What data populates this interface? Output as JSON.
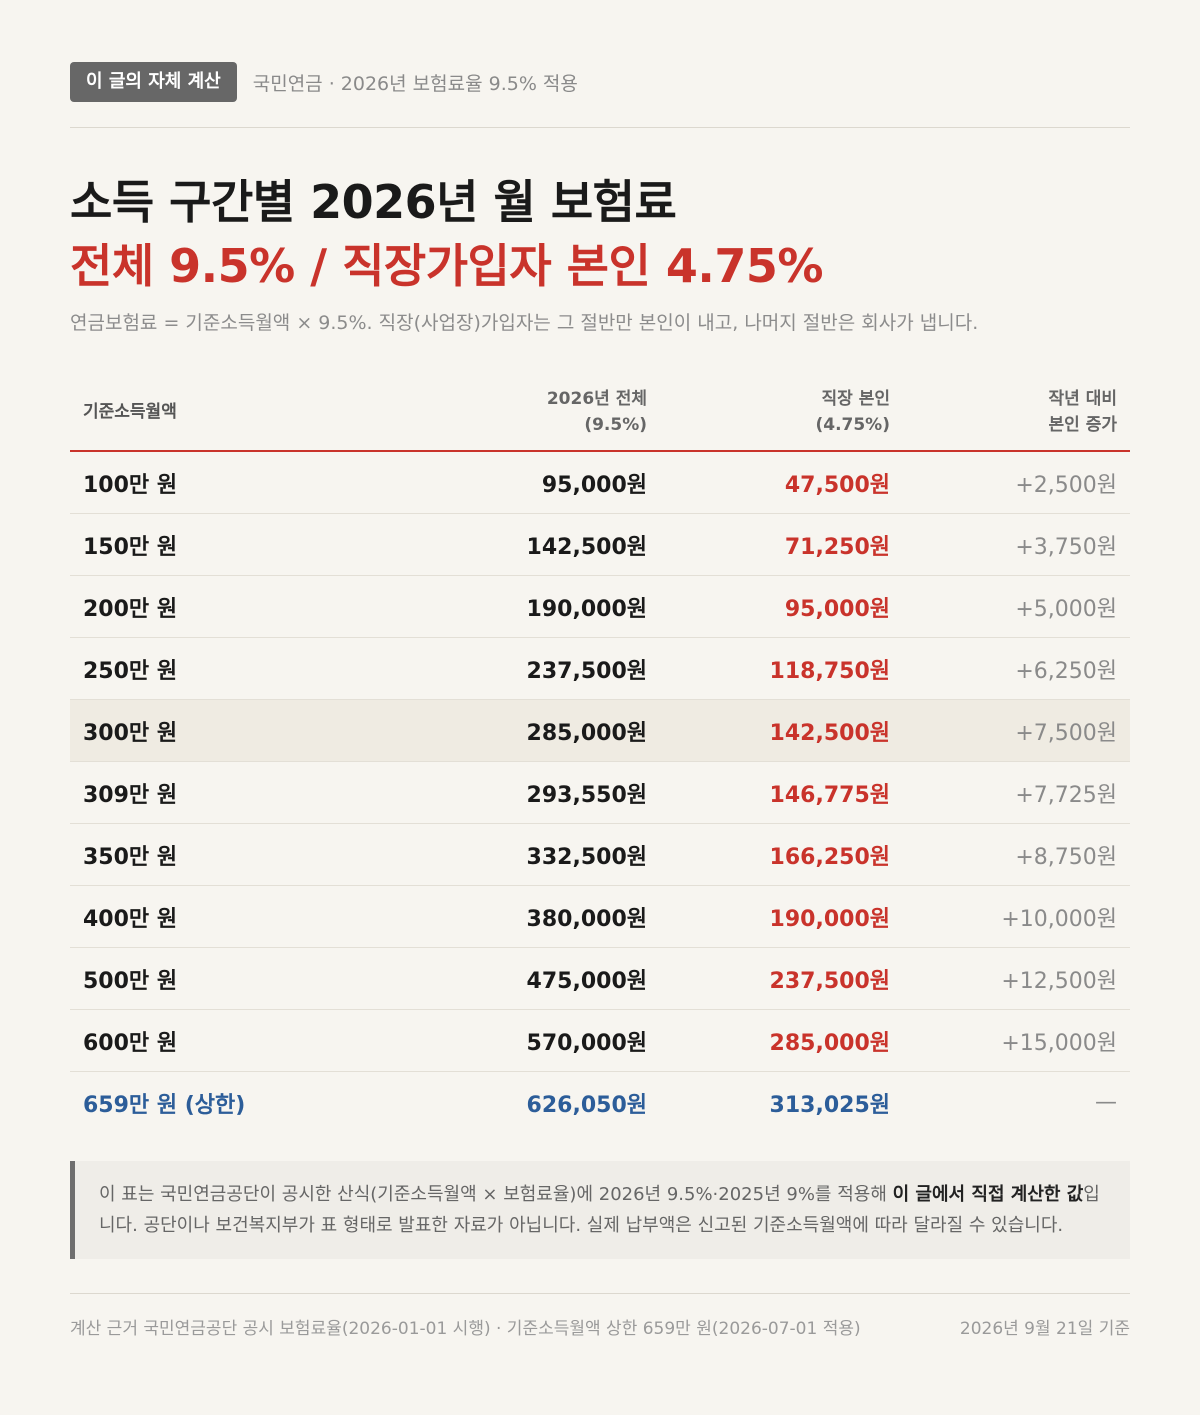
{
  "header": {
    "badge": "이 글의 자체 계산",
    "note": "국민연금 · 2026년 보험료율 9.5% 적용"
  },
  "title": "소득 구간별 2026년 월 보험료",
  "subtitle": "전체 9.5% / 직장가입자 본인 4.75%",
  "description": "연금보험료 = 기준소득월액 × 9.5%. 직장(사업장)가입자는 그 절반만 본인이 내고, 나머지 절반은 회사가 냅니다.",
  "table": {
    "headers": {
      "income": "기준소득월액",
      "total_line1": "2026년 전체",
      "total_line2": "(9.5%)",
      "employee_line1": "직장 본인",
      "employee_line2": "(4.75%)",
      "increase_line1": "작년 대비",
      "increase_line2": "본인 증가"
    },
    "rows": [
      {
        "income": "100만 원",
        "total": "95,000원",
        "employee": "47,500원",
        "increase": "+2,500원"
      },
      {
        "income": "150만 원",
        "total": "142,500원",
        "employee": "71,250원",
        "increase": "+3,750원"
      },
      {
        "income": "200만 원",
        "total": "190,000원",
        "employee": "95,000원",
        "increase": "+5,000원"
      },
      {
        "income": "250만 원",
        "total": "237,500원",
        "employee": "118,750원",
        "increase": "+6,250원"
      },
      {
        "income": "300만 원",
        "total": "285,000원",
        "employee": "142,500원",
        "increase": "+7,500원"
      },
      {
        "income": "309만 원",
        "total": "293,550원",
        "employee": "146,775원",
        "increase": "+7,725원"
      },
      {
        "income": "350만 원",
        "total": "332,500원",
        "employee": "166,250원",
        "increase": "+8,750원"
      },
      {
        "income": "400만 원",
        "total": "380,000원",
        "employee": "190,000원",
        "increase": "+10,000원"
      },
      {
        "income": "500만 원",
        "total": "475,000원",
        "employee": "237,500원",
        "increase": "+12,500원"
      },
      {
        "income": "600만 원",
        "total": "570,000원",
        "employee": "285,000원",
        "increase": "+15,000원"
      },
      {
        "income": "659만 원 (상한)",
        "total": "626,050원",
        "employee": "313,025원",
        "increase": "—"
      }
    ]
  },
  "note": {
    "text_before": "이 표는 국민연금공단이 공시한 산식(기준소득월액 × 보험료율)에 2026년 9.5%·2025년 9%를 적용해 ",
    "text_bold": "이 글에서 직접 계산한 값",
    "text_after": "입니다. 공단이나 보건복지부가 표 형태로 발표한 자료가 아닙니다. 실제 납부액은 신고된 기준소득월액에 따라 달라질 수 있습니다."
  },
  "footer": {
    "source": "계산 근거 국민연금공단 공시 보험료율(2026-01-01 시행) · 기준소득월액 상한 659만 원(2026-07-01 적용)",
    "date": "2026년 9월 21일 기준"
  },
  "colors": {
    "accent_red": "#c9332b",
    "cap_blue": "#2c5d99",
    "highlight_row": "#efebe2",
    "background": "#f7f5f0"
  }
}
